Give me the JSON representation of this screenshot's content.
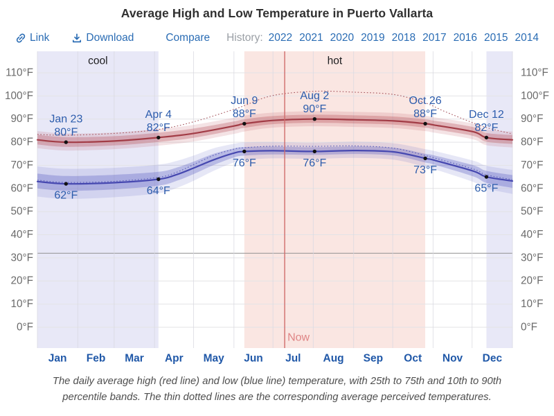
{
  "page": {
    "title": "Average High and Low Temperature in Puerto Vallarta"
  },
  "toolbar": {
    "link_label": "Link",
    "download_label": "Download",
    "compare_label": "Compare",
    "history_label": "History:",
    "years": [
      "2022",
      "2021",
      "2020",
      "2019",
      "2018",
      "2017",
      "2016",
      "2015",
      "2014"
    ],
    "accent_color": "#2a6cb4",
    "history_color": "#9a9fa5"
  },
  "caption": {
    "line1": "The daily average high (red line) and low (blue line) temperature, with 25th to 75th and 10th to 90th",
    "line2": "percentile bands. The thin dotted lines are the corresponding average perceived temperatures."
  },
  "chart_data": {
    "type": "line",
    "title": "Average High and Low Temperature in Puerto Vallarta",
    "unit": "°F",
    "y_ticks": [
      0,
      10,
      20,
      30,
      40,
      50,
      60,
      70,
      80,
      90,
      100,
      110
    ],
    "ylim": [
      -9,
      119
    ],
    "freezing_ref": 32,
    "months": [
      "Jan",
      "Feb",
      "Mar",
      "Apr",
      "May",
      "Jun",
      "Jul",
      "Aug",
      "Sep",
      "Oct",
      "Nov",
      "Dec"
    ],
    "seasons": [
      {
        "label": "cool",
        "type": "cool",
        "start_day": 0,
        "end_day": 93
      },
      {
        "label": "hot",
        "type": "hot",
        "start_day": 159,
        "end_day": 298
      },
      {
        "label": "",
        "type": "cool",
        "start_day": 345,
        "end_day": 365
      }
    ],
    "now": {
      "day": 190,
      "label": "Now"
    },
    "colors": {
      "high_line": "#a23c46",
      "high_dotted": "#a85a62",
      "high_band_inner": "rgba(178,70,80,0.30)",
      "high_band_outer": "rgba(178,70,80,0.15)",
      "low_line": "#4648b0",
      "low_dotted": "#5d5fba",
      "low_band_inner": "rgba(80,82,190,0.30)",
      "low_band_outer": "rgba(80,82,190,0.14)",
      "cool_band": "#e8e8f7",
      "hot_band": "#fae6e2",
      "grid": "#e3e3e6",
      "grid_v": "#d9d9e1",
      "freezing": "#8f8f8f",
      "axis_text": "#6a6a6a",
      "annotation_text": "#2c5cac",
      "month_text": "#2058a8",
      "season_text": "#1d1d1f",
      "now_line": "#cf6b6b",
      "now_label": "#df8585",
      "dot": "#111111"
    },
    "series": [
      {
        "name": "average high",
        "points": [
          [
            0,
            81
          ],
          [
            22,
            80
          ],
          [
            59,
            80.5
          ],
          [
            93,
            82
          ],
          [
            120,
            83.8
          ],
          [
            151,
            87
          ],
          [
            159,
            88
          ],
          [
            181,
            89.4
          ],
          [
            213,
            90
          ],
          [
            244,
            89.7
          ],
          [
            274,
            89.2
          ],
          [
            298,
            88
          ],
          [
            305,
            87.4
          ],
          [
            335,
            84.5
          ],
          [
            345,
            82
          ],
          [
            365,
            81
          ]
        ],
        "band_25_75": [
          [
            0,
            79,
            83.2
          ],
          [
            22,
            78,
            82.2
          ],
          [
            59,
            78.6,
            82.6
          ],
          [
            93,
            80.1,
            84.1
          ],
          [
            120,
            81.9,
            85.9
          ],
          [
            151,
            85.2,
            89
          ],
          [
            159,
            86.2,
            89.9
          ],
          [
            181,
            87.8,
            91.3
          ],
          [
            213,
            88.4,
            91.9
          ],
          [
            244,
            88.1,
            91.6
          ],
          [
            274,
            87.6,
            91.1
          ],
          [
            298,
            86.3,
            89.9
          ],
          [
            305,
            85.6,
            89.3
          ],
          [
            335,
            82.7,
            86.5
          ],
          [
            345,
            80.2,
            84
          ],
          [
            365,
            79.2,
            83.1
          ]
        ],
        "band_10_90": [
          [
            0,
            77.4,
            84.8
          ],
          [
            22,
            76.4,
            83.8
          ],
          [
            59,
            77,
            84.2
          ],
          [
            93,
            78.5,
            85.7
          ],
          [
            120,
            80.3,
            87.5
          ],
          [
            151,
            83.6,
            90.6
          ],
          [
            159,
            84.6,
            91.5
          ],
          [
            181,
            86.3,
            92.8
          ],
          [
            213,
            86.9,
            93.4
          ],
          [
            244,
            86.6,
            93.1
          ],
          [
            274,
            86.1,
            92.6
          ],
          [
            298,
            84.8,
            91.4
          ],
          [
            305,
            84.1,
            90.8
          ],
          [
            335,
            81.2,
            88
          ],
          [
            345,
            78.7,
            85.5
          ],
          [
            365,
            77.7,
            84.6
          ]
        ],
        "perceived_dotted": [
          [
            0,
            83.4
          ],
          [
            22,
            83
          ],
          [
            59,
            83.8
          ],
          [
            93,
            85.5
          ],
          [
            120,
            88.8
          ],
          [
            151,
            94.2
          ],
          [
            159,
            95.8
          ],
          [
            181,
            100.2
          ],
          [
            213,
            102
          ],
          [
            244,
            101.6
          ],
          [
            274,
            100.6
          ],
          [
            298,
            97
          ],
          [
            312,
            93.5
          ],
          [
            335,
            88.3
          ],
          [
            345,
            86.3
          ],
          [
            365,
            83.6
          ]
        ]
      },
      {
        "name": "average low",
        "points": [
          [
            0,
            63
          ],
          [
            22,
            62
          ],
          [
            59,
            62.5
          ],
          [
            93,
            64
          ],
          [
            107,
            66
          ],
          [
            120,
            68.8
          ],
          [
            135,
            72.3
          ],
          [
            151,
            75.3
          ],
          [
            159,
            76
          ],
          [
            181,
            76.3
          ],
          [
            213,
            76
          ],
          [
            244,
            76.4
          ],
          [
            274,
            75.8
          ],
          [
            298,
            73
          ],
          [
            305,
            72.2
          ],
          [
            335,
            67.5
          ],
          [
            345,
            65
          ],
          [
            365,
            63.2
          ]
        ],
        "band_25_75": [
          [
            0,
            60,
            66.4
          ],
          [
            22,
            59,
            65.4
          ],
          [
            59,
            59.6,
            65.9
          ],
          [
            93,
            61.2,
            67.2
          ],
          [
            107,
            63.3,
            69
          ],
          [
            120,
            66.2,
            71.6
          ],
          [
            135,
            70,
            74.9
          ],
          [
            151,
            73.4,
            77.3
          ],
          [
            159,
            74.2,
            77.9
          ],
          [
            181,
            74.7,
            78.1
          ],
          [
            213,
            74.5,
            77.8
          ],
          [
            244,
            74.9,
            78.2
          ],
          [
            274,
            74.2,
            77.6
          ],
          [
            298,
            71.2,
            75
          ],
          [
            305,
            70.3,
            74.3
          ],
          [
            335,
            65.2,
            70
          ],
          [
            345,
            62.4,
            67.6
          ],
          [
            365,
            60.2,
            65.8
          ]
        ],
        "band_10_90": [
          [
            0,
            56.5,
            69.5
          ],
          [
            22,
            55.5,
            68.5
          ],
          [
            59,
            56.2,
            68.9
          ],
          [
            93,
            57.9,
            70.3
          ],
          [
            107,
            60.2,
            71.9
          ],
          [
            120,
            63.3,
            74.2
          ],
          [
            135,
            67.5,
            77.3
          ],
          [
            151,
            71.3,
            79.3
          ],
          [
            159,
            72.3,
            79.9
          ],
          [
            181,
            73,
            80.1
          ],
          [
            213,
            72.8,
            79.8
          ],
          [
            244,
            73.2,
            80.2
          ],
          [
            274,
            72.4,
            79.5
          ],
          [
            298,
            69.3,
            77
          ],
          [
            305,
            68.3,
            76.2
          ],
          [
            335,
            62.8,
            72
          ],
          [
            345,
            60,
            69.8
          ],
          [
            365,
            57.6,
            68
          ]
        ],
        "perceived_dotted": [
          [
            0,
            63.6
          ],
          [
            22,
            62.6
          ],
          [
            59,
            63.1
          ],
          [
            93,
            64.8
          ],
          [
            107,
            67
          ],
          [
            120,
            70.3
          ],
          [
            135,
            74.2
          ],
          [
            151,
            77
          ],
          [
            159,
            77.6
          ],
          [
            181,
            78.3
          ],
          [
            213,
            78.2
          ],
          [
            244,
            78.4
          ],
          [
            274,
            77.4
          ],
          [
            298,
            74.2
          ],
          [
            305,
            73.2
          ],
          [
            335,
            68.4
          ],
          [
            345,
            65.9
          ],
          [
            365,
            63.8
          ]
        ]
      }
    ],
    "annotations": [
      {
        "day": 22,
        "date": "Jan 23",
        "high": 80,
        "low": 62
      },
      {
        "day": 93,
        "date": "Apr 4",
        "high": 82,
        "low": 64
      },
      {
        "day": 159,
        "date": "Jun 9",
        "high": 88,
        "low": 76
      },
      {
        "day": 213,
        "date": "Aug 2",
        "high": 90,
        "low": 76
      },
      {
        "day": 298,
        "date": "Oct 26",
        "high": 88,
        "low": 73
      },
      {
        "day": 345,
        "date": "Dec 12",
        "high": 82,
        "low": 65
      }
    ]
  }
}
